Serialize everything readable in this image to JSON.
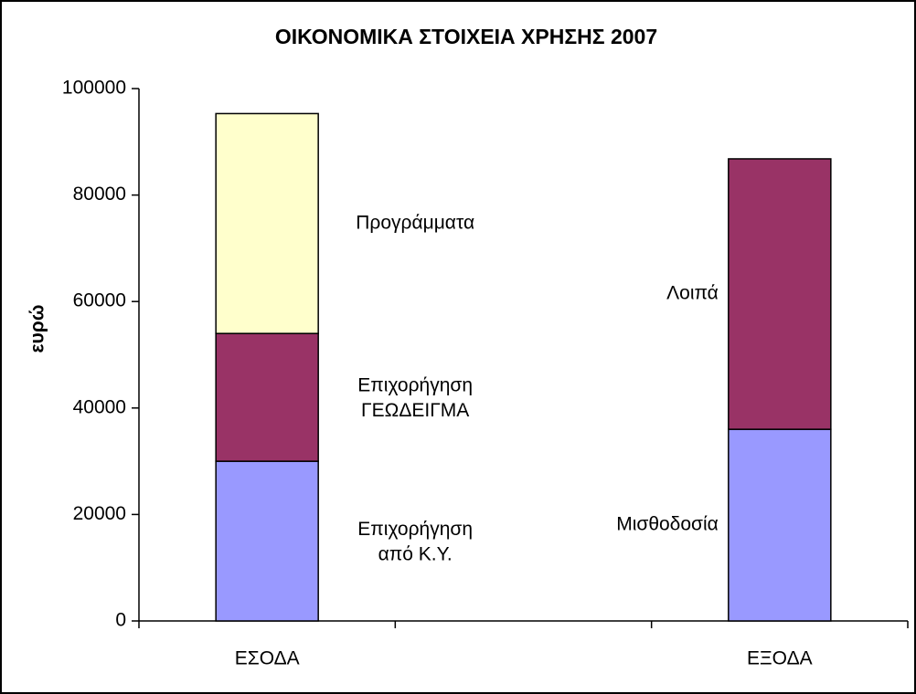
{
  "chart_data": {
    "type": "stacked-bar",
    "title": "ΟΙΚΟΝΟΜΙΚΑ ΣΤΟΙΧΕΙΑ ΧΡΗΣΗΣ 2007",
    "y_label": "ευρώ",
    "categories": [
      "ΕΣΟΔΑ",
      "ΕΞΟΔΑ"
    ],
    "series": [
      {
        "name": "Επιχορήγηση από Κ.Υ.",
        "color": "#9999ff",
        "values": [
          30000,
          null
        ]
      },
      {
        "name": "Επιχορήγηση ΓΕΩΔΕΙΓΜΑ",
        "color": "#993366",
        "values": [
          24000,
          null
        ]
      },
      {
        "name": "Προγράμματα",
        "color": "#ffffcc",
        "values": [
          41300,
          null
        ]
      },
      {
        "name": "Μισθοδοσία",
        "color": "#9999ff",
        "values": [
          null,
          36000
        ]
      },
      {
        "name": "Λοιπά",
        "color": "#993366",
        "values": [
          null,
          50800
        ]
      }
    ],
    "ylim": [
      0,
      100000
    ],
    "yticks": [
      0,
      20000,
      40000,
      60000,
      80000,
      100000
    ]
  }
}
